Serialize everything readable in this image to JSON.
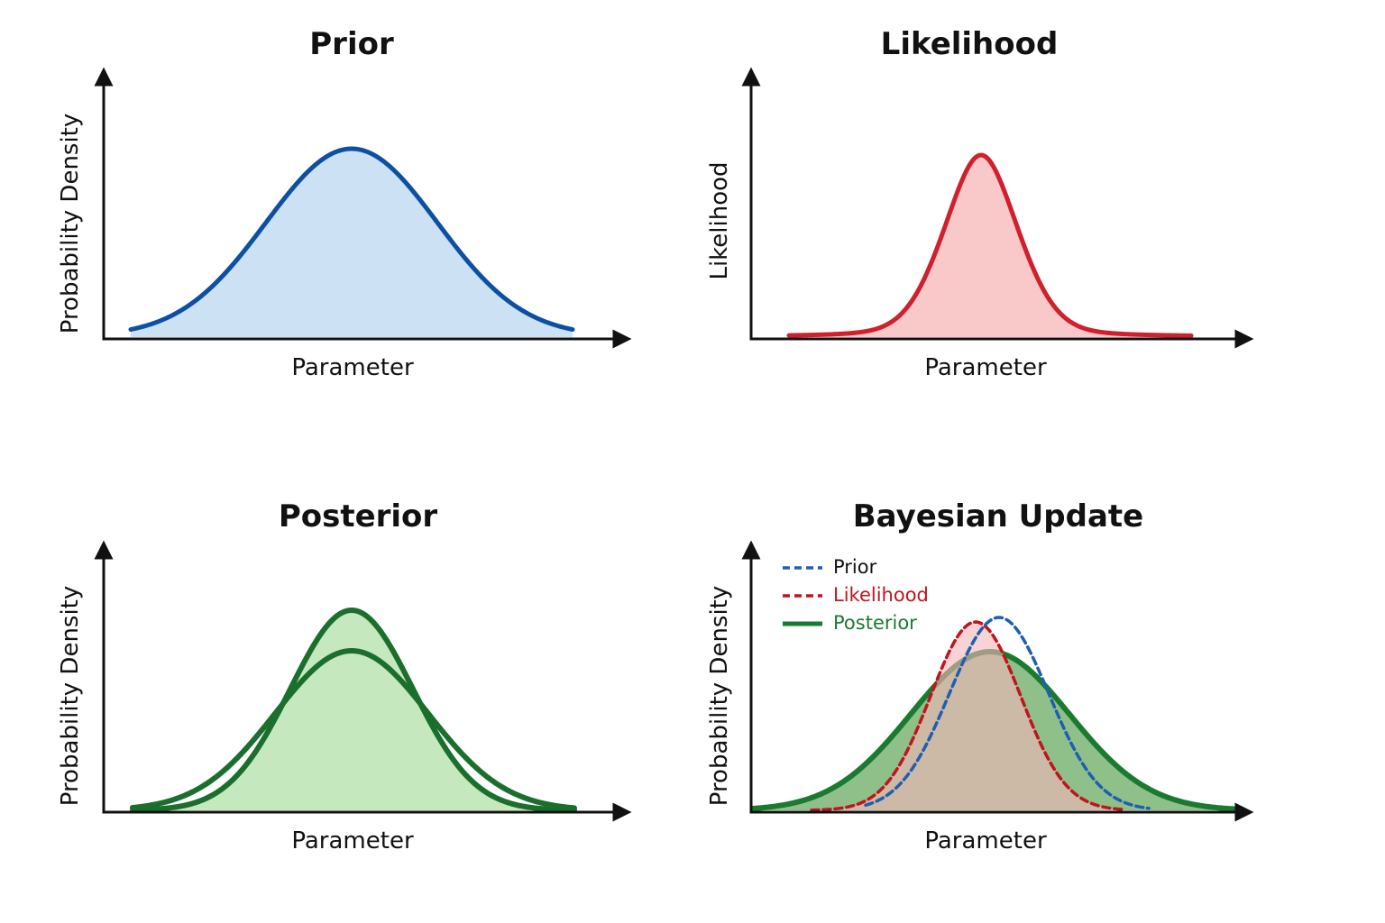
{
  "panels": [
    {
      "title": "Prior",
      "xlabel": "Parameter",
      "ylabel": "Probability Density"
    },
    {
      "title": "Likelihood",
      "xlabel": "Parameter",
      "ylabel": "Likelihood"
    },
    {
      "title": "Posterior",
      "xlabel": "Parameter",
      "ylabel": "Probability Density"
    },
    {
      "title": "Bayesian Update",
      "xlabel": "Parameter",
      "ylabel": "Probability Density",
      "legend": [
        "Prior",
        "Likelihood",
        "Posterior"
      ]
    }
  ]
}
